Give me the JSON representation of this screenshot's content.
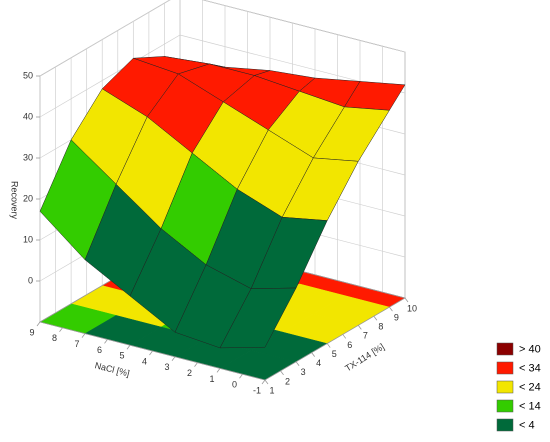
{
  "chart_data": {
    "type": "surface",
    "x_label": "NaCl [%]",
    "y_label": "TX-114 [%]",
    "z_label": "Recovery",
    "x": [
      -1,
      1,
      3,
      5,
      7,
      9
    ],
    "y": [
      1,
      3,
      5,
      7,
      9,
      10
    ],
    "z": [
      [
        -2,
        8,
        20,
        30,
        38,
        42
      ],
      [
        -5,
        5,
        18,
        28,
        36,
        40
      ],
      [
        -4,
        8,
        22,
        32,
        37,
        38
      ],
      [
        2,
        14,
        28,
        36,
        38,
        37
      ],
      [
        8,
        22,
        34,
        40,
        38,
        35
      ],
      [
        17,
        30,
        38,
        41,
        37,
        33
      ]
    ],
    "xlim": [
      -1,
      9
    ],
    "ylim": [
      1,
      10
    ],
    "zlim": [
      -10,
      50
    ],
    "xticks": [
      -1,
      0,
      1,
      2,
      3,
      4,
      5,
      6,
      7,
      8,
      9
    ],
    "yticks": [
      1,
      2,
      3,
      4,
      5,
      6,
      7,
      8,
      9,
      10
    ],
    "zticks": [
      0,
      10,
      20,
      30,
      40,
      50
    ],
    "grid": true,
    "legend": [
      {
        "value": 40,
        "label": "> 40",
        "color": "#8b0000"
      },
      {
        "value": 34,
        "label": "< 34",
        "color": "#ff1a00"
      },
      {
        "value": 24,
        "label": "< 24",
        "color": "#f2e600"
      },
      {
        "value": 14,
        "label": "< 14",
        "color": "#33cc00"
      },
      {
        "value": 4,
        "label": "< 4",
        "color": "#006a3a"
      }
    ]
  }
}
